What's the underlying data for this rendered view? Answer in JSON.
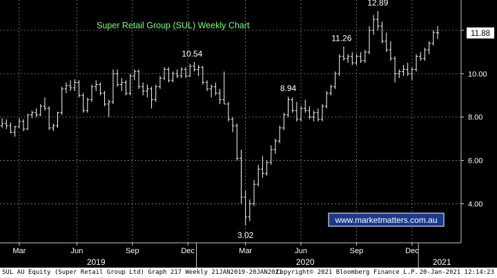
{
  "chart_data": {
    "type": "ohlc",
    "title": "Super Retail Group (SUL) Weekly Chart",
    "watermark": "www.marketmatters.com.au",
    "y_ticks": [
      "4.00",
      "6.00",
      "8.00",
      "10.00",
      "12.00"
    ],
    "ylim": [
      2.2,
      13.4
    ],
    "x_range": [
      0,
      108
    ],
    "last_price": "11.88",
    "x_ticks": [
      {
        "label": "Mar",
        "x": 4.5
      },
      {
        "label": "Jun",
        "x": 18
      },
      {
        "label": "Sep",
        "x": 31
      },
      {
        "label": "Dec",
        "x": 44
      },
      {
        "label": "Mar",
        "x": 57.5
      },
      {
        "label": "Jun",
        "x": 70.5
      },
      {
        "label": "Sep",
        "x": 83.5
      },
      {
        "label": "Dec",
        "x": 96.5
      }
    ],
    "years": [
      {
        "label": "2019",
        "x": 22.5
      },
      {
        "label": "2020",
        "x": 71.5
      },
      {
        "label": "2021",
        "x": 103.5
      }
    ],
    "year_boundaries": [
      46,
      98
    ],
    "annotations": [
      {
        "text": "10.54",
        "x": 45,
        "y": 10.54,
        "pos": "above"
      },
      {
        "text": "3.02",
        "x": 57.5,
        "y": 3.02,
        "pos": "below"
      },
      {
        "text": "8.94",
        "x": 67.5,
        "y": 8.94,
        "pos": "above"
      },
      {
        "text": "11.26",
        "x": 80,
        "y": 11.26,
        "pos": "above"
      },
      {
        "text": "12.89",
        "x": 88.5,
        "y": 12.89,
        "pos": "above"
      }
    ],
    "bars": [
      [
        7.6,
        7.95,
        7.5,
        7.7
      ],
      [
        7.7,
        7.9,
        7.45,
        7.6
      ],
      [
        7.6,
        7.75,
        7.25,
        7.3
      ],
      [
        7.3,
        7.6,
        7.1,
        7.55
      ],
      [
        7.55,
        7.95,
        7.5,
        7.8
      ],
      [
        7.8,
        7.9,
        7.35,
        7.45
      ],
      [
        7.45,
        8.15,
        7.4,
        8.1
      ],
      [
        8.1,
        8.3,
        7.95,
        8.2
      ],
      [
        8.2,
        8.4,
        8.0,
        8.1
      ],
      [
        8.1,
        8.6,
        8.05,
        8.5
      ],
      [
        8.5,
        8.9,
        8.3,
        8.4
      ],
      [
        8.4,
        8.5,
        7.4,
        7.5
      ],
      [
        7.5,
        7.7,
        7.35,
        7.6
      ],
      [
        7.6,
        8.25,
        7.5,
        8.2
      ],
      [
        8.2,
        9.4,
        8.1,
        9.3
      ],
      [
        9.3,
        9.6,
        9.1,
        9.45
      ],
      [
        9.45,
        9.7,
        9.2,
        9.35
      ],
      [
        9.35,
        9.75,
        9.2,
        9.6
      ],
      [
        9.6,
        9.7,
        8.9,
        9.0
      ],
      [
        9.0,
        9.1,
        8.2,
        8.3
      ],
      [
        8.3,
        8.9,
        8.2,
        8.8
      ],
      [
        8.8,
        9.5,
        8.7,
        9.4
      ],
      [
        9.4,
        9.7,
        9.2,
        9.5
      ],
      [
        9.5,
        9.6,
        9.0,
        9.1
      ],
      [
        9.1,
        9.2,
        8.5,
        8.6
      ],
      [
        8.6,
        8.8,
        8.0,
        8.7
      ],
      [
        8.7,
        10.2,
        8.6,
        10.0
      ],
      [
        10.0,
        10.2,
        9.4,
        9.5
      ],
      [
        9.5,
        9.8,
        9.2,
        9.6
      ],
      [
        9.6,
        9.7,
        9.0,
        9.1
      ],
      [
        9.1,
        10.0,
        9.0,
        9.9
      ],
      [
        9.9,
        10.2,
        9.7,
        10.1
      ],
      [
        10.1,
        10.2,
        9.3,
        9.4
      ],
      [
        9.4,
        9.6,
        9.0,
        9.2
      ],
      [
        9.2,
        9.5,
        8.9,
        9.3
      ],
      [
        9.3,
        9.4,
        8.4,
        8.8
      ],
      [
        8.8,
        9.5,
        8.7,
        9.4
      ],
      [
        9.4,
        9.9,
        9.3,
        9.8
      ],
      [
        9.8,
        10.3,
        9.7,
        10.2
      ],
      [
        10.2,
        10.3,
        9.6,
        9.7
      ],
      [
        9.7,
        10.1,
        9.6,
        10.0
      ],
      [
        10.0,
        10.2,
        9.8,
        9.9
      ],
      [
        9.9,
        10.3,
        9.8,
        10.2
      ],
      [
        10.2,
        10.3,
        9.8,
        9.9
      ],
      [
        9.9,
        10.45,
        9.85,
        10.35
      ],
      [
        10.35,
        10.54,
        10.1,
        10.2
      ],
      [
        10.2,
        10.4,
        9.9,
        10.3
      ],
      [
        10.3,
        10.35,
        9.5,
        9.6
      ],
      [
        9.6,
        9.7,
        9.2,
        9.3
      ],
      [
        9.3,
        9.5,
        8.9,
        9.4
      ],
      [
        9.4,
        9.6,
        9.0,
        9.1
      ],
      [
        9.1,
        9.3,
        8.6,
        8.8
      ],
      [
        8.8,
        10.1,
        8.6,
        8.6
      ],
      [
        8.6,
        8.7,
        7.8,
        7.9
      ],
      [
        7.9,
        8.0,
        7.3,
        7.6
      ],
      [
        7.6,
        7.7,
        6.0,
        6.1
      ],
      [
        6.1,
        6.5,
        4.0,
        4.3
      ],
      [
        4.3,
        4.6,
        3.02,
        3.4
      ],
      [
        3.4,
        4.2,
        3.2,
        4.0
      ],
      [
        4.0,
        5.1,
        3.9,
        4.9
      ],
      [
        4.9,
        5.8,
        4.8,
        5.6
      ],
      [
        5.6,
        6.2,
        5.2,
        5.4
      ],
      [
        5.4,
        6.0,
        5.3,
        5.9
      ],
      [
        5.9,
        6.7,
        5.8,
        6.5
      ],
      [
        6.5,
        7.0,
        6.3,
        6.9
      ],
      [
        6.9,
        7.6,
        6.8,
        7.5
      ],
      [
        7.5,
        8.2,
        7.4,
        8.1
      ],
      [
        8.1,
        8.94,
        8.0,
        8.8
      ],
      [
        8.8,
        8.9,
        8.2,
        8.3
      ],
      [
        8.3,
        8.7,
        7.8,
        7.9
      ],
      [
        7.9,
        8.5,
        7.8,
        8.4
      ],
      [
        8.4,
        8.8,
        8.2,
        8.3
      ],
      [
        8.3,
        8.5,
        7.9,
        8.0
      ],
      [
        8.0,
        8.3,
        7.8,
        8.2
      ],
      [
        8.2,
        8.4,
        7.8,
        7.9
      ],
      [
        7.9,
        8.6,
        7.8,
        8.5
      ],
      [
        8.5,
        9.2,
        8.4,
        9.1
      ],
      [
        9.1,
        9.5,
        9.0,
        9.4
      ],
      [
        9.4,
        10.1,
        9.3,
        10.0
      ],
      [
        10.0,
        10.9,
        9.9,
        10.8
      ],
      [
        10.8,
        11.26,
        10.6,
        10.7
      ],
      [
        10.7,
        10.9,
        10.5,
        10.8
      ],
      [
        10.8,
        11.0,
        10.4,
        10.5
      ],
      [
        10.5,
        10.9,
        10.4,
        10.8
      ],
      [
        10.8,
        11.0,
        10.5,
        10.6
      ],
      [
        10.6,
        11.1,
        10.5,
        11.0
      ],
      [
        11.0,
        12.2,
        10.9,
        12.0
      ],
      [
        12.0,
        12.7,
        11.8,
        12.5
      ],
      [
        12.5,
        12.89,
        12.0,
        12.2
      ],
      [
        12.2,
        12.4,
        11.4,
        11.5
      ],
      [
        11.5,
        11.9,
        11.0,
        11.1
      ],
      [
        11.1,
        11.5,
        10.6,
        10.7
      ],
      [
        10.7,
        10.8,
        9.6,
        10.0
      ],
      [
        10.0,
        10.2,
        9.8,
        10.1
      ],
      [
        10.1,
        10.4,
        9.9,
        10.2
      ],
      [
        10.2,
        10.5,
        9.9,
        10.0
      ],
      [
        10.0,
        10.3,
        9.7,
        10.2
      ],
      [
        10.2,
        10.9,
        10.1,
        10.8
      ],
      [
        10.8,
        11.0,
        10.6,
        10.7
      ],
      [
        10.7,
        11.2,
        10.6,
        11.1
      ],
      [
        11.1,
        11.5,
        10.9,
        11.4
      ],
      [
        11.4,
        12.0,
        11.3,
        11.9
      ],
      [
        11.9,
        12.2,
        11.6,
        11.88
      ]
    ]
  },
  "footer": {
    "left": "SUL AU Equity (Super Retail Group Ltd) Graph 217  Weekly 21JAN2019-20JAN2021",
    "center": "Copyright© 2021 Bloomberg Finance L.P.",
    "right": "20-Jan-2021 12:14:23"
  }
}
